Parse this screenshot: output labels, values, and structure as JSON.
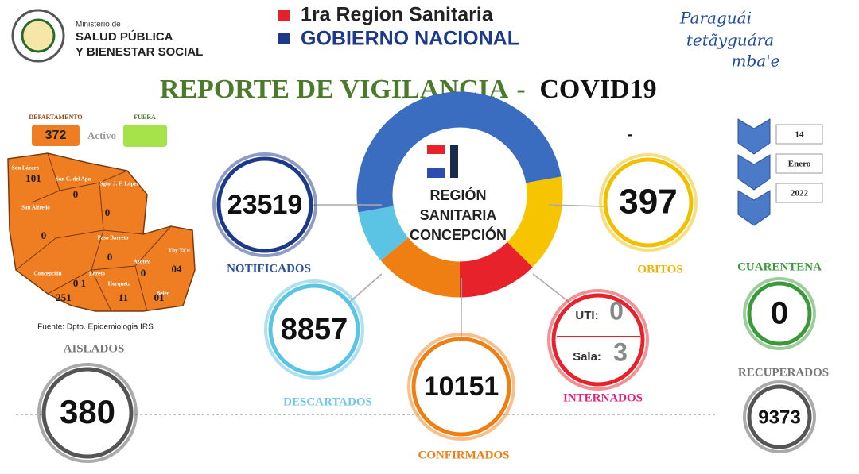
{
  "header": {
    "ministry_small": "Ministerio de",
    "ministry_line1": "SALUD PÚBLICA",
    "ministry_line2": "Y BIENESTAR SOCIAL",
    "region": "1ra Region Sanitaria",
    "government": "GOBIERNO NACIONAL",
    "slogan_line1": "Paraguái",
    "slogan_line2": "tetãyguára",
    "slogan_line3": "mba'e"
  },
  "title": {
    "main": "REPORTE DE VIGILANCIA",
    "separator": "-",
    "topic": "COVID19"
  },
  "legend": {
    "department_label": "DEPARTAMENTO",
    "department_value": "372",
    "active": "Activo",
    "outside_label": "FUERA"
  },
  "map": {
    "districts": [
      {
        "name": "San Lázaro",
        "count": "101"
      },
      {
        "name": "San C. del Apa",
        "count": "0"
      },
      {
        "name": "Sgto. J. F. López",
        "count": "0"
      },
      {
        "name": "San Alfredo",
        "count": "0"
      },
      {
        "name": "Paso Barreto",
        "count": "0"
      },
      {
        "name": "Yby Ya'u",
        "count": "04"
      },
      {
        "name": "Azotey",
        "count": "0"
      },
      {
        "name": "Concepción",
        "count": "251"
      },
      {
        "name": "Loreto",
        "count": "0 1"
      },
      {
        "name": "Horqueta",
        "count": "11"
      },
      {
        "name": "Belén",
        "count": "01"
      }
    ],
    "source": "Fuente: Dpto. Epidemiologia IRS"
  },
  "center": {
    "line1": "REGIÓN",
    "line2": "SANITARIA",
    "line3": "CONCEPCIÓN",
    "dash": "-"
  },
  "stats": {
    "notificados": {
      "value": "23519",
      "label": "NOTIFICADOS"
    },
    "obitos": {
      "value": "397",
      "label": "OBITOS"
    },
    "descartados": {
      "value": "8857",
      "label": "DESCARTADOS"
    },
    "confirmados": {
      "value": "10151",
      "label": "CONFIRMADOS"
    },
    "internados": {
      "uti_label": "UTI:",
      "uti": "0",
      "sala_label": "Sala:",
      "sala": "3",
      "label": "INTERNADOS"
    },
    "cuarentena": {
      "value": "0",
      "label": "CUARENTENA"
    },
    "aislados": {
      "value": "380",
      "label": "AISLADOS"
    },
    "recuperados": {
      "value": "9373",
      "label": "RECUPERADOS"
    }
  },
  "date": {
    "day": "14",
    "month": "Enero",
    "year": "2022"
  }
}
